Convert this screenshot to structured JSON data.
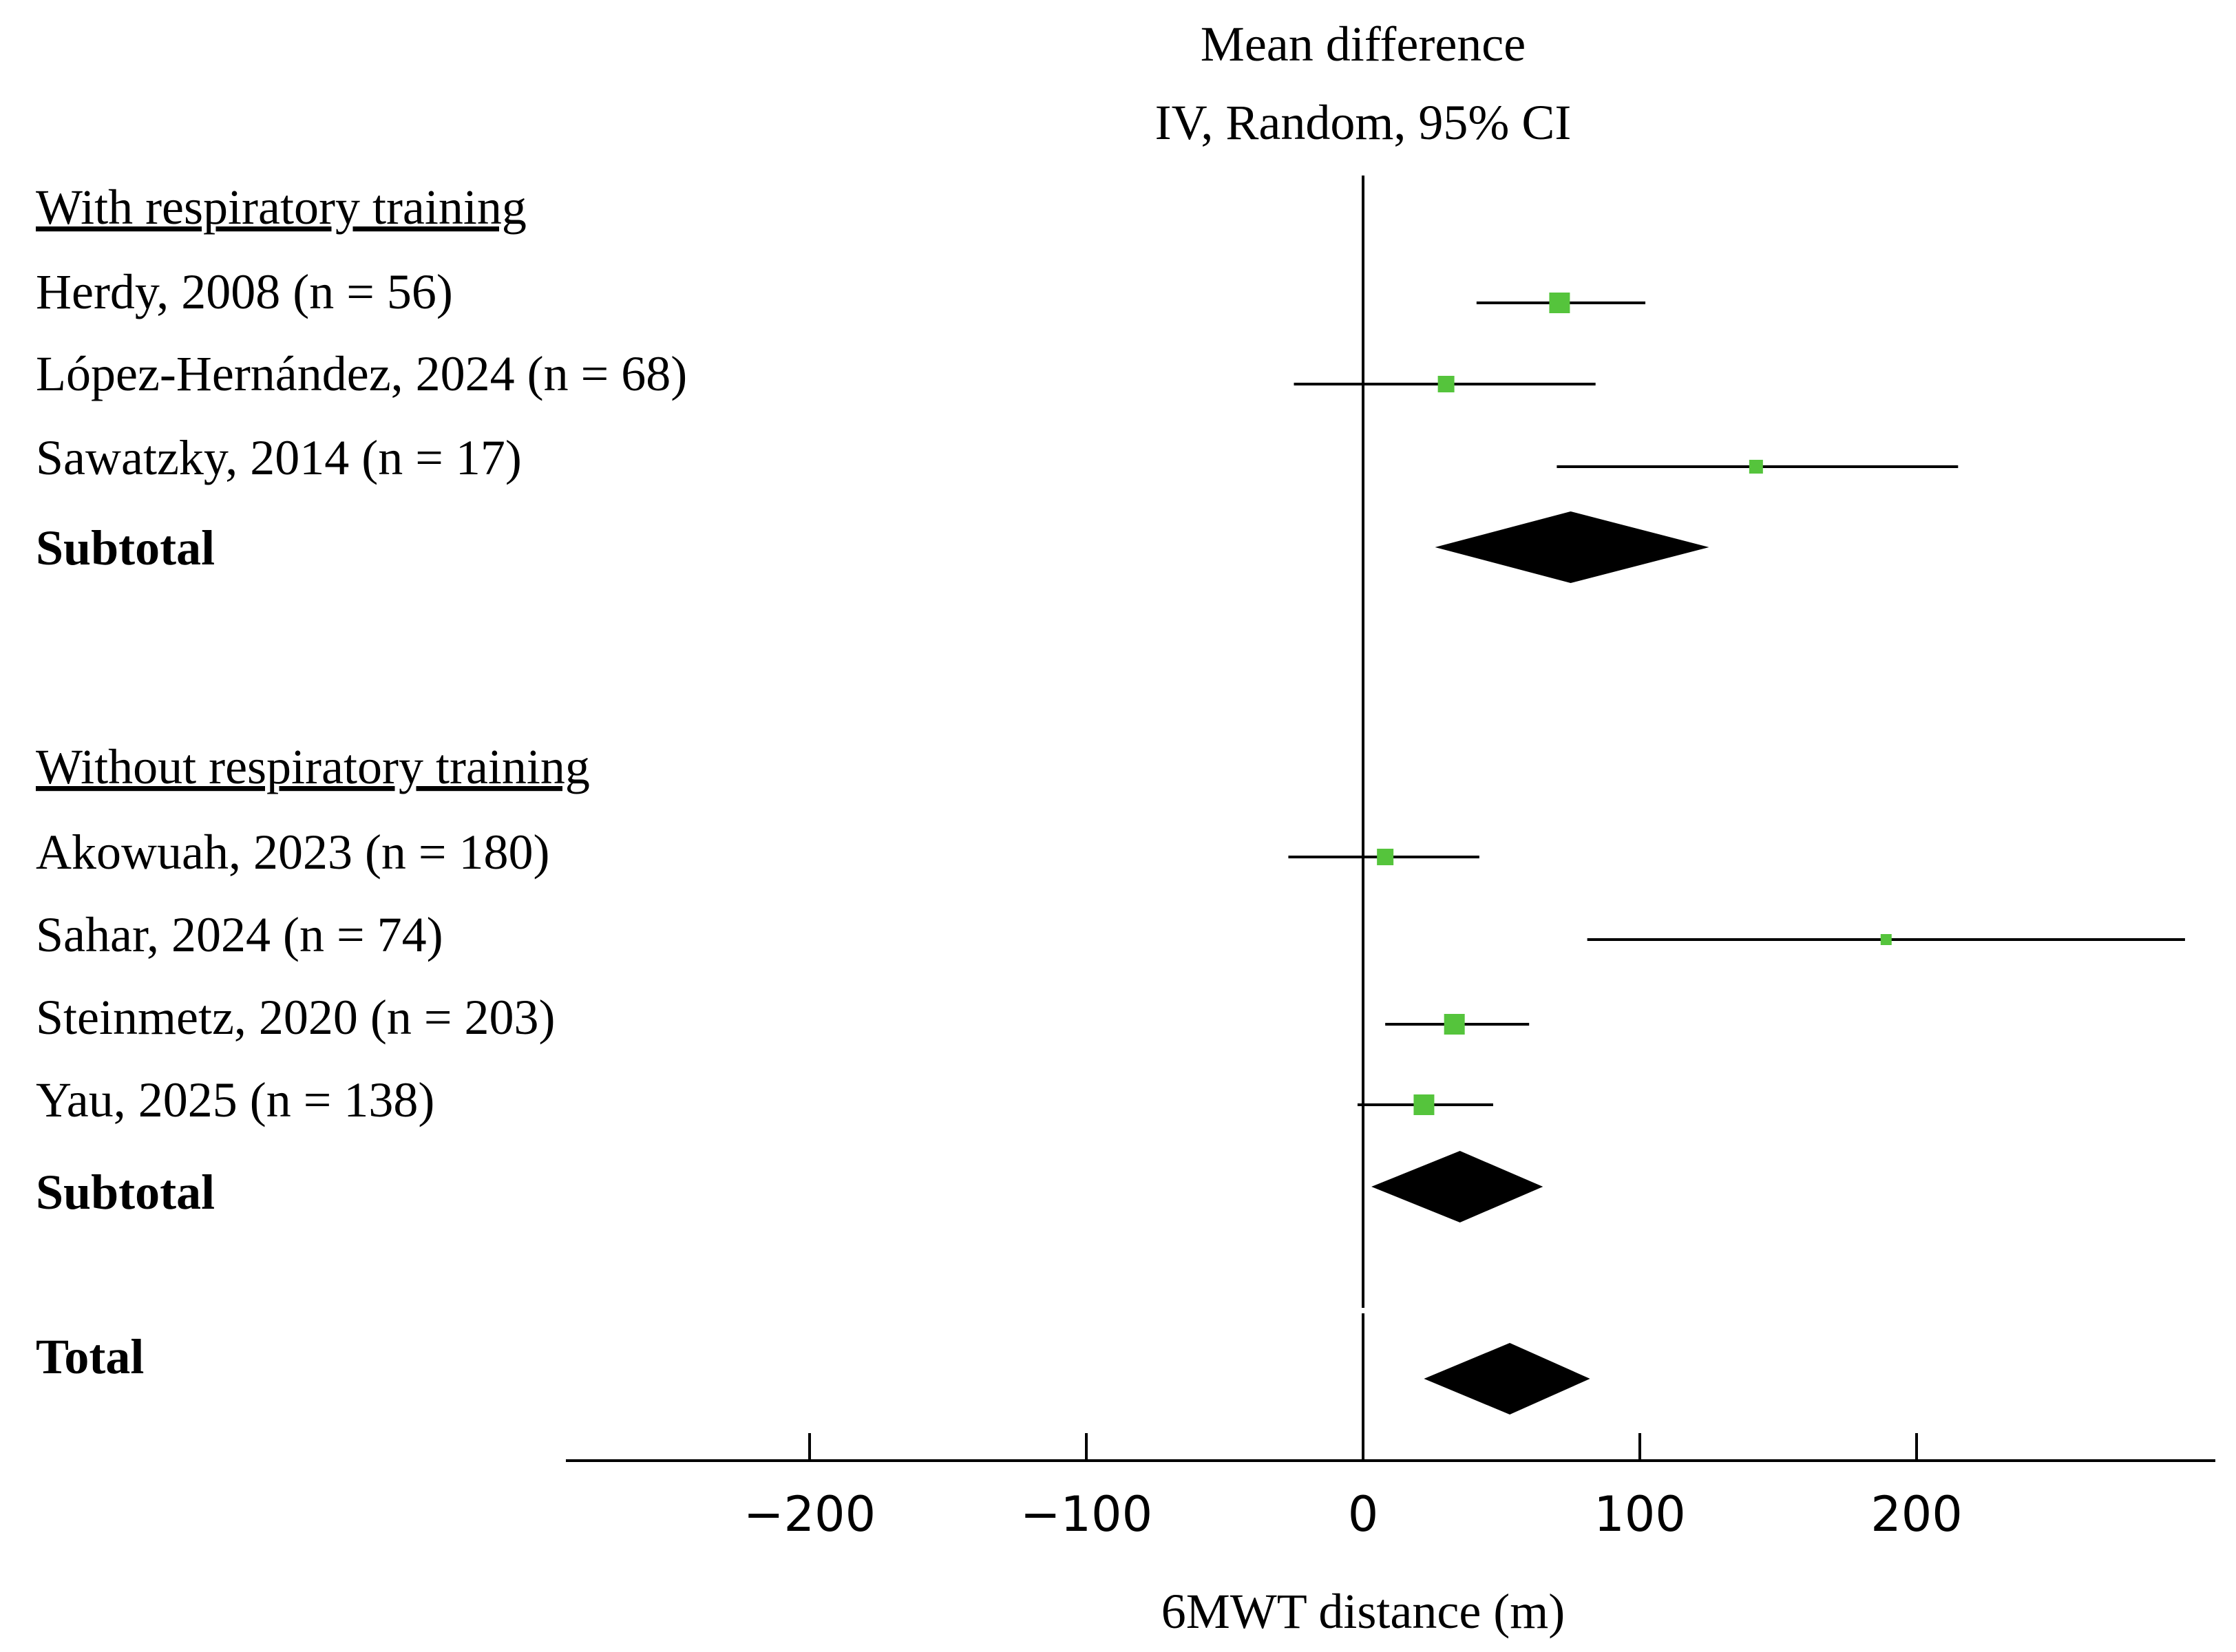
{
  "chart_data": {
    "type": "forest",
    "title_line1": "Mean difference",
    "title_line2": "IV, Random, 95% CI",
    "xlabel": "6MWT distance (m)",
    "xlim": [
      -288,
      310
    ],
    "xticks": [
      -200,
      -100,
      0,
      100,
      200
    ],
    "xtick_labels": [
      "−200",
      "−100",
      "0",
      "100",
      "200"
    ],
    "groups": [
      {
        "heading": "With respiratory training",
        "studies": [
          {
            "label": "Herdy, 2008 (n = 56)",
            "estimate": 71,
            "ci": [
              41,
              102
            ],
            "weight": "large"
          },
          {
            "label": "López-Hernández, 2024 (n = 68)",
            "estimate": 30,
            "ci": [
              -25,
              84
            ],
            "weight": "medium"
          },
          {
            "label": "Sawatzky, 2014 (n = 17)",
            "estimate": 142,
            "ci": [
              70,
              215
            ],
            "weight": "small"
          }
        ],
        "subtotal": {
          "label": "Subtotal",
          "estimate": 75,
          "ci": [
            26,
            125
          ]
        }
      },
      {
        "heading": "Without respiratory training",
        "studies": [
          {
            "label": "Akowuah, 2023 (n = 180)",
            "estimate": 8,
            "ci": [
              -27,
              42
            ],
            "weight": "medium"
          },
          {
            "label": "Sahar, 2024 (n = 74)",
            "estimate": 189,
            "ci": [
              81,
              297
            ],
            "weight": "tiny"
          },
          {
            "label": "Steinmetz, 2020 (n = 203)",
            "estimate": 33,
            "ci": [
              8,
              60
            ],
            "weight": "large"
          },
          {
            "label": "Yau, 2025 (n = 138)",
            "estimate": 22,
            "ci": [
              -2,
              47
            ],
            "weight": "large"
          }
        ],
        "subtotal": {
          "label": "Subtotal",
          "estimate": 35,
          "ci": [
            3,
            65
          ]
        }
      }
    ],
    "total": {
      "label": "Total",
      "estimate": 53,
      "ci": [
        22,
        82
      ]
    },
    "colors": {
      "marker": "#55c43c",
      "diamond": "#000000",
      "line": "#000000"
    }
  }
}
